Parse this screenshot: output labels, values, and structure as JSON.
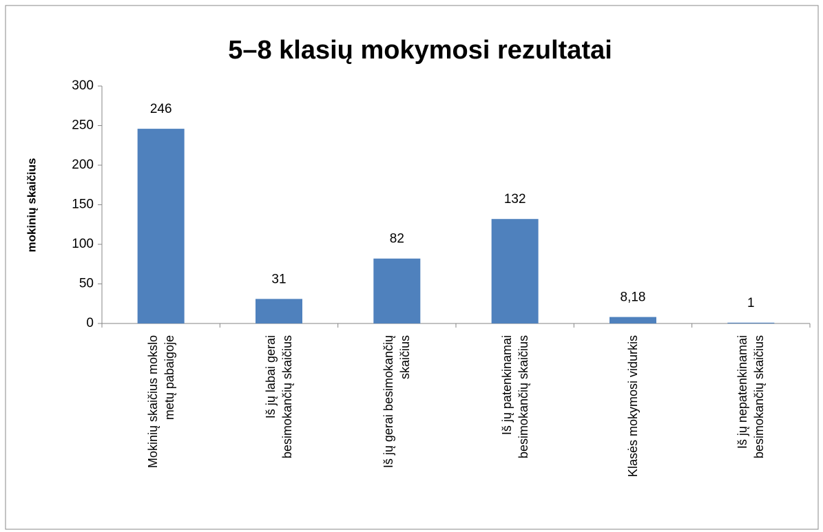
{
  "chart_data": {
    "type": "bar",
    "title": "5–8 klasių mokymosi rezultatai",
    "y_label": "mokinių skaičius",
    "categories": [
      "Mokinių skaičius mokslo\nmetų pabaigoje",
      "Iš jų labai gerai\nbesimokančių skaičius",
      "Iš jų gerai besimokančių\nskaičius",
      "Iš jų patenkinamai\nbesimokančių skaičius",
      "Klasės mokymosi vidurkis",
      "Iš jų nepatenkinamai\nbesimokančių skaičius"
    ],
    "values": [
      246,
      31,
      82,
      132,
      8.18,
      1
    ],
    "value_labels": [
      "246",
      "31",
      "82",
      "132",
      "8,18",
      "1"
    ],
    "color": "#4f81bd",
    "ylim": [
      0,
      300
    ],
    "yticks": [
      0,
      50,
      100,
      150,
      200,
      250,
      300
    ],
    "grid": false
  }
}
